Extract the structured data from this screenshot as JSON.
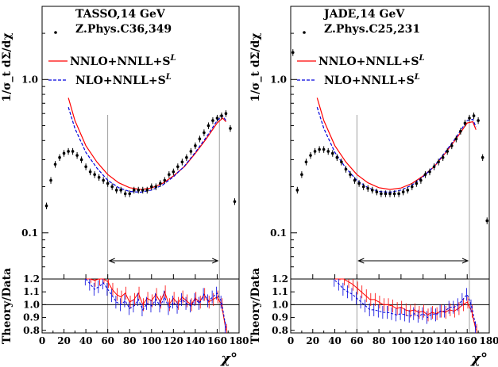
{
  "chart_data": [
    {
      "type": "scatter",
      "panel": "left",
      "ylabel": "1/σ_t dΣ/dχ",
      "ratio_ylabel": "Theory/Data",
      "xlabel": "χ°",
      "xlim": [
        0,
        180
      ],
      "ylim": [
        0.05,
        3.0
      ],
      "ylog": true,
      "ratio_ylim": [
        0.78,
        1.2
      ],
      "x_ticks": [
        0,
        20,
        40,
        60,
        80,
        100,
        120,
        140,
        160,
        180
      ],
      "x_tick_labels": [
        "0",
        "20",
        "40",
        "60",
        "80",
        "100",
        "120",
        "140",
        "160",
        "180"
      ],
      "y_ticks": [
        0.1,
        1.0
      ],
      "y_tick_labels": [
        "0.1",
        "1.0"
      ],
      "ratio_y_ticks": [
        0.8,
        0.9,
        1.0,
        1.1,
        1.2
      ],
      "ratio_y_tick_labels": [
        "0.8",
        "0.9",
        "1.0",
        "1.1",
        "1.2"
      ],
      "vertical_lines": [
        60,
        162
      ],
      "fit_range": [
        60,
        162
      ],
      "legend_title": [
        "TASSO,14 GeV",
        "Z.Phys.C36,349"
      ],
      "legend_entries": [
        "NNLO+NNLL+S",
        "NLO+NNLL+S"
      ],
      "legend_superscript": "L",
      "data": {
        "x": [
          4,
          8,
          12,
          16,
          20,
          24,
          28,
          32,
          36,
          40,
          44,
          48,
          52,
          56,
          60,
          64,
          68,
          72,
          76,
          80,
          84,
          88,
          92,
          96,
          100,
          104,
          108,
          112,
          116,
          120,
          124,
          128,
          132,
          136,
          140,
          144,
          148,
          152,
          156,
          160,
          164,
          168,
          172,
          176
        ],
        "y": [
          0.15,
          0.22,
          0.28,
          0.31,
          0.33,
          0.34,
          0.34,
          0.32,
          0.3,
          0.27,
          0.25,
          0.24,
          0.23,
          0.22,
          0.21,
          0.2,
          0.19,
          0.19,
          0.18,
          0.18,
          0.19,
          0.19,
          0.19,
          0.19,
          0.2,
          0.2,
          0.21,
          0.22,
          0.24,
          0.25,
          0.27,
          0.29,
          0.31,
          0.34,
          0.37,
          0.41,
          0.45,
          0.5,
          0.54,
          0.56,
          0.58,
          0.6,
          0.48,
          0.16
        ]
      },
      "series": [
        {
          "name": "NNLO+NNLL+S",
          "color": "#ff0000",
          "dash": "solid",
          "x": [
            24,
            30,
            40,
            50,
            60,
            70,
            80,
            90,
            100,
            110,
            120,
            130,
            140,
            150,
            160,
            165,
            168
          ],
          "y": [
            0.76,
            0.54,
            0.37,
            0.29,
            0.24,
            0.212,
            0.197,
            0.192,
            0.196,
            0.21,
            0.235,
            0.27,
            0.33,
            0.41,
            0.52,
            0.56,
            0.53
          ]
        },
        {
          "name": "NLO+NNLL+S",
          "color": "#0000dd",
          "dash": "dashed",
          "x": [
            24,
            30,
            40,
            50,
            60,
            70,
            80,
            90,
            100,
            110,
            120,
            130,
            140,
            150,
            160,
            165,
            168
          ],
          "y": [
            0.66,
            0.48,
            0.335,
            0.265,
            0.22,
            0.197,
            0.186,
            0.184,
            0.19,
            0.205,
            0.232,
            0.272,
            0.335,
            0.42,
            0.54,
            0.58,
            0.54
          ]
        }
      ],
      "ratio_series": [
        {
          "name": "NNLO+NNLL+S",
          "color": "#ff0000",
          "x": [
            40,
            44,
            48,
            52,
            56,
            60,
            64,
            68,
            72,
            76,
            80,
            84,
            88,
            92,
            96,
            100,
            104,
            108,
            112,
            116,
            120,
            124,
            128,
            132,
            136,
            140,
            144,
            148,
            152,
            156,
            160,
            164,
            168
          ],
          "y": [
            1.26,
            1.22,
            1.19,
            1.2,
            1.22,
            1.18,
            1.12,
            1.08,
            1.06,
            1.09,
            1.02,
            1.04,
            1.09,
            1.0,
            1.05,
            1.03,
            1.08,
            1.02,
            1.1,
            1.0,
            1.05,
            1.01,
            1.06,
            1.03,
            1.0,
            1.05,
            1.02,
            1.08,
            1.02,
            1.04,
            1.06,
            1.0,
            0.8
          ]
        },
        {
          "name": "NLO+NNLL+S",
          "color": "#0000dd",
          "x": [
            40,
            44,
            48,
            52,
            56,
            60,
            64,
            68,
            72,
            76,
            80,
            84,
            88,
            92,
            96,
            100,
            104,
            108,
            112,
            116,
            120,
            124,
            128,
            132,
            136,
            140,
            144,
            148,
            152,
            156,
            160,
            164,
            168
          ],
          "y": [
            1.2,
            1.16,
            1.12,
            1.14,
            1.17,
            1.12,
            1.07,
            1.02,
            1.0,
            1.03,
            0.97,
            0.99,
            1.04,
            0.96,
            1.01,
            0.99,
            1.04,
            0.99,
            1.06,
            0.97,
            1.02,
            0.98,
            1.04,
            1.01,
            0.99,
            1.04,
            1.01,
            1.08,
            1.03,
            1.06,
            1.09,
            1.02,
            0.82
          ]
        }
      ]
    },
    {
      "type": "scatter",
      "panel": "right",
      "ylabel": "1/σ_t dΣ/dχ",
      "ratio_ylabel": "Theory/Data",
      "xlabel": "χ°",
      "xlim": [
        0,
        180
      ],
      "ylim": [
        0.05,
        3.0
      ],
      "ylog": true,
      "ratio_ylim": [
        0.78,
        1.2
      ],
      "x_ticks": [
        0,
        20,
        40,
        60,
        80,
        100,
        120,
        140,
        160,
        180
      ],
      "x_tick_labels": [
        "0",
        "20",
        "40",
        "60",
        "80",
        "100",
        "120",
        "140",
        "160",
        "180"
      ],
      "y_ticks": [
        0.1,
        1.0
      ],
      "y_tick_labels": [
        "0.1",
        "1.0"
      ],
      "ratio_y_ticks": [
        0.8,
        0.9,
        1.0,
        1.1,
        1.2
      ],
      "ratio_y_tick_labels": [
        "0.8",
        "0.9",
        "1.0",
        "1.1",
        "1.2"
      ],
      "vertical_lines": [
        60,
        162
      ],
      "fit_range": [
        60,
        162
      ],
      "legend_title": [
        "JADE,14 GeV",
        "Z.Phys.C25,231"
      ],
      "legend_entries": [
        "NNLO+NNLL+S",
        "NLO+NNLL+S"
      ],
      "legend_superscript": "L",
      "data": {
        "x": [
          2,
          6,
          10,
          14,
          18,
          22,
          26,
          30,
          34,
          38,
          42,
          46,
          50,
          54,
          58,
          62,
          66,
          70,
          74,
          78,
          82,
          86,
          90,
          94,
          98,
          102,
          106,
          110,
          114,
          118,
          122,
          126,
          130,
          134,
          138,
          142,
          146,
          150,
          154,
          158,
          162,
          166,
          170,
          174,
          178
        ],
        "y": [
          1.5,
          0.19,
          0.24,
          0.29,
          0.32,
          0.34,
          0.35,
          0.35,
          0.34,
          0.33,
          0.31,
          0.29,
          0.26,
          0.24,
          0.22,
          0.21,
          0.2,
          0.195,
          0.19,
          0.185,
          0.18,
          0.18,
          0.18,
          0.18,
          0.18,
          0.185,
          0.19,
          0.2,
          0.21,
          0.22,
          0.24,
          0.25,
          0.27,
          0.29,
          0.31,
          0.34,
          0.37,
          0.41,
          0.46,
          0.52,
          0.56,
          0.58,
          0.54,
          0.31,
          0.12
        ]
      },
      "series": [
        {
          "name": "NNLO+NNLL+S",
          "color": "#ff0000",
          "dash": "solid",
          "x": [
            24,
            30,
            40,
            50,
            60,
            70,
            80,
            90,
            100,
            110,
            120,
            130,
            140,
            150,
            160,
            165,
            168
          ],
          "y": [
            0.76,
            0.54,
            0.37,
            0.29,
            0.24,
            0.212,
            0.197,
            0.192,
            0.196,
            0.21,
            0.235,
            0.27,
            0.33,
            0.41,
            0.52,
            0.53,
            0.47
          ]
        },
        {
          "name": "NLO+NNLL+S",
          "color": "#0000dd",
          "dash": "dashed",
          "x": [
            24,
            30,
            40,
            50,
            60,
            70,
            80,
            90,
            100,
            110,
            120,
            130,
            140,
            150,
            160,
            165,
            168
          ],
          "y": [
            0.66,
            0.48,
            0.335,
            0.265,
            0.22,
            0.197,
            0.186,
            0.184,
            0.19,
            0.205,
            0.232,
            0.272,
            0.335,
            0.42,
            0.54,
            0.55,
            0.49
          ]
        }
      ],
      "ratio_series": [
        {
          "name": "NNLO+NNLL+S",
          "color": "#ff0000",
          "x": [
            40,
            44,
            48,
            52,
            56,
            60,
            64,
            68,
            72,
            76,
            80,
            84,
            88,
            92,
            96,
            100,
            104,
            108,
            112,
            116,
            120,
            124,
            128,
            132,
            136,
            140,
            144,
            148,
            152,
            156,
            160,
            164,
            168
          ],
          "y": [
            1.27,
            1.24,
            1.2,
            1.18,
            1.16,
            1.13,
            1.1,
            1.07,
            1.04,
            1.04,
            1.02,
            1.0,
            1.0,
            0.99,
            0.97,
            0.98,
            0.96,
            0.95,
            0.96,
            0.94,
            0.95,
            0.92,
            0.94,
            0.93,
            0.95,
            0.94,
            0.96,
            0.95,
            0.97,
            1.0,
            1.02,
            0.95,
            0.8
          ]
        },
        {
          "name": "NLO+NNLL+S",
          "color": "#0000dd",
          "x": [
            40,
            44,
            48,
            52,
            56,
            60,
            64,
            68,
            72,
            76,
            80,
            84,
            88,
            92,
            96,
            100,
            104,
            108,
            112,
            116,
            120,
            124,
            128,
            132,
            136,
            140,
            144,
            148,
            152,
            156,
            160,
            164,
            168
          ],
          "y": [
            1.19,
            1.16,
            1.12,
            1.1,
            1.08,
            1.05,
            1.02,
            0.99,
            0.96,
            0.96,
            0.95,
            0.94,
            0.94,
            0.93,
            0.92,
            0.93,
            0.92,
            0.91,
            0.93,
            0.91,
            0.93,
            0.9,
            0.93,
            0.92,
            0.95,
            0.95,
            0.98,
            0.98,
            1.0,
            1.04,
            1.08,
            0.99,
            0.82
          ]
        }
      ]
    }
  ]
}
